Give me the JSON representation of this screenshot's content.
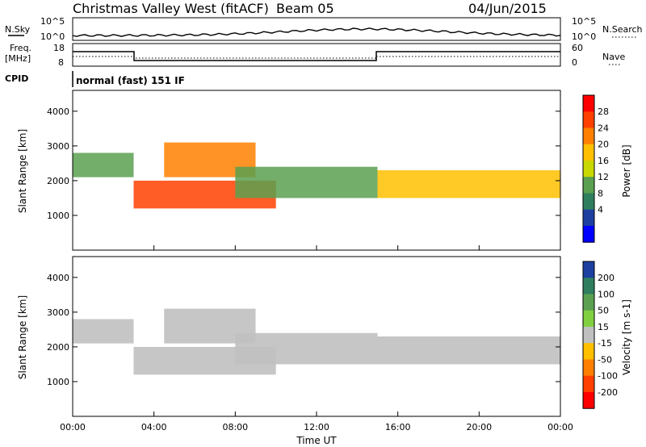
{
  "header": {
    "title": "Christmas Valley West (fitACF)",
    "beam": "Beam 05",
    "date": "04/Jun/2015"
  },
  "summary_panels": {
    "nsky_label": "N.Sky",
    "nsky_ticks": [
      "10^5",
      "10^0"
    ],
    "nsearch_label": "N.Search",
    "freq_label": [
      "Freq.",
      "[MHz]"
    ],
    "freq_ticks": [
      "18",
      "8"
    ],
    "nave_label": "Nave",
    "nave_ticks": [
      "60",
      "0"
    ],
    "cpid_label": "CPID",
    "cpid_value": "normal (fast) 151 IF"
  },
  "chart_data": [
    {
      "type": "heatmap",
      "name": "power",
      "ylabel": "Slant Range [km]",
      "ylim": [
        0,
        4600
      ],
      "yticks": [
        "1000",
        "2000",
        "3000",
        "4000"
      ],
      "xlim": [
        0,
        24
      ],
      "colorbar": {
        "label": "Power [dB]",
        "ticks": [
          "28",
          "24",
          "20",
          "16",
          "12",
          "8",
          "4"
        ],
        "colors": [
          "#ff0000",
          "#ff4000",
          "#ff8000",
          "#ffc000",
          "#c8d800",
          "#5aa050",
          "#2f7f5f",
          "#1c3fa0",
          "#0000ff"
        ]
      },
      "bands": [
        {
          "t": [
            0,
            3
          ],
          "range": [
            2100,
            2800
          ],
          "db": 14
        },
        {
          "t": [
            3,
            10
          ],
          "range": [
            1200,
            2000
          ],
          "db": 24
        },
        {
          "t": [
            4.5,
            9
          ],
          "range": [
            2100,
            3100
          ],
          "db": 22
        },
        {
          "t": [
            8,
            15
          ],
          "range": [
            1500,
            2400
          ],
          "db": 12
        },
        {
          "t": [
            15,
            24
          ],
          "range": [
            1500,
            2300
          ],
          "db": 20
        }
      ]
    },
    {
      "type": "heatmap",
      "name": "velocity",
      "ylabel": "Slant Range [km]",
      "xlabel": "Time UT",
      "ylim": [
        0,
        4600
      ],
      "yticks": [
        "1000",
        "2000",
        "3000",
        "4000"
      ],
      "xlim": [
        0,
        24
      ],
      "xticks": [
        "00:00",
        "04:00",
        "08:00",
        "12:00",
        "16:00",
        "20:00",
        "00:00"
      ],
      "colorbar": {
        "label": "Velocity [m s-1]",
        "ticks": [
          "200",
          "100",
          "50",
          "15",
          "-15",
          "-50",
          "-100",
          "-200"
        ],
        "colors": [
          "#1c3fa0",
          "#2f7f5f",
          "#5aa050",
          "#80d040",
          "#c0c0c0",
          "#ffc000",
          "#ff8000",
          "#ff4000",
          "#ff0000"
        ]
      }
    }
  ]
}
